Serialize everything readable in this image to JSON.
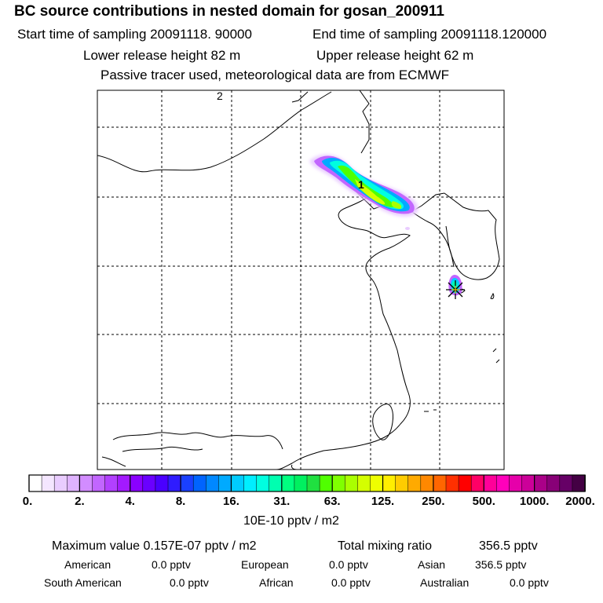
{
  "header": {
    "title": "BC  source contributions in nested domain for gosan_200911",
    "start_time": "Start time of sampling 20091118. 90000",
    "end_time": "End time of sampling 20091118.120000",
    "lower_height": "Lower release height   82 m",
    "upper_height": "Upper release height   62 m",
    "note": "Passive tracer used, meteorological data are from ECMWF"
  },
  "chart_data": {
    "type": "heatmap",
    "map_labels": [
      "2",
      "1"
    ],
    "colorbar": {
      "tick_labels": [
        "0.",
        "2.",
        "4.",
        "8.",
        "16.",
        "31.",
        "63.",
        "125.",
        "250.",
        "500.",
        "1000.",
        "2000."
      ],
      "units": "10E-10 pptv / m2",
      "colors": [
        "#ffffff",
        "#f4e6ff",
        "#e9ccff",
        "#dfb3ff",
        "#d28cff",
        "#c266ff",
        "#b240ff",
        "#a31aff",
        "#8a00ff",
        "#6a00ff",
        "#4a00ff",
        "#2f1cff",
        "#1a40ff",
        "#0064ff",
        "#0088ff",
        "#00aaff",
        "#00ccff",
        "#00eeff",
        "#00ffe0",
        "#00ffb0",
        "#00ff80",
        "#00f060",
        "#20e040",
        "#50ff00",
        "#80ff00",
        "#aaff00",
        "#d4ff00",
        "#eeff00",
        "#ffee00",
        "#ffcc00",
        "#ffaa00",
        "#ff8800",
        "#ff6600",
        "#ff3000",
        "#ff0000",
        "#ff0066",
        "#ff0099",
        "#ff00bb",
        "#e600aa",
        "#cc0099",
        "#aa0088",
        "#880077",
        "#660066",
        "#440044"
      ]
    }
  },
  "stats": {
    "max_label": "Maximum value  0.157E-07 pptv / m2",
    "total_label": "Total mixing ratio",
    "total_value": "356.5 pptv"
  },
  "regions": [
    {
      "name": "American",
      "value": "0.0 pptv"
    },
    {
      "name": "European",
      "value": "0.0 pptv"
    },
    {
      "name": "Asian",
      "value": "356.5 pptv"
    },
    {
      "name": "South American",
      "value": "0.0 pptv"
    },
    {
      "name": "African",
      "value": "0.0 pptv"
    },
    {
      "name": "Australian",
      "value": "0.0 pptv"
    }
  ]
}
